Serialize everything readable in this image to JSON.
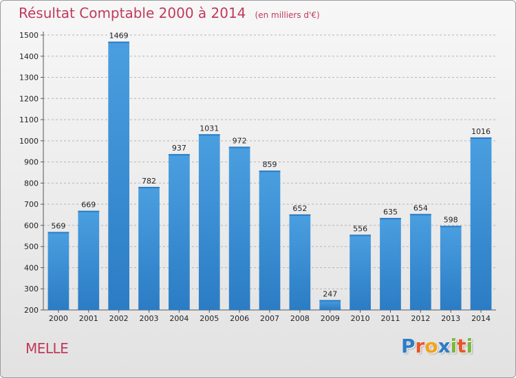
{
  "chart_data": {
    "type": "bar",
    "title": "Résultat Comptable 2000 à 2014",
    "subtitle": "(en milliers d'€)",
    "xlabel": "",
    "ylabel": "",
    "categories": [
      "2000",
      "2001",
      "2002",
      "2003",
      "2004",
      "2005",
      "2006",
      "2007",
      "2008",
      "2009",
      "2010",
      "2011",
      "2012",
      "2013",
      "2014"
    ],
    "values": [
      569,
      669,
      1469,
      782,
      937,
      1031,
      972,
      859,
      652,
      247,
      556,
      635,
      654,
      598,
      1016
    ],
    "ylim": [
      200,
      1500
    ],
    "yticks": [
      200,
      300,
      400,
      500,
      600,
      700,
      800,
      900,
      1000,
      1100,
      1200,
      1300,
      1400,
      1500
    ],
    "grid": "horizontal-dashed",
    "bar_color": "#4a9fe0",
    "bar_color_dark": "#2b7cc4"
  },
  "place_name": "MELLE",
  "logo": {
    "letters": [
      {
        "char": "P",
        "color": "#2e7cc6"
      },
      {
        "char": "r",
        "color": "#e8562a"
      },
      {
        "char": "o",
        "color": "#f4a21c"
      },
      {
        "char": "x",
        "color": "#2e7cc6"
      },
      {
        "char": "i",
        "color": "#7ab83a"
      },
      {
        "char": "t",
        "color": "#e8562a"
      },
      {
        "char": "i",
        "color": "#7ab83a"
      }
    ]
  }
}
